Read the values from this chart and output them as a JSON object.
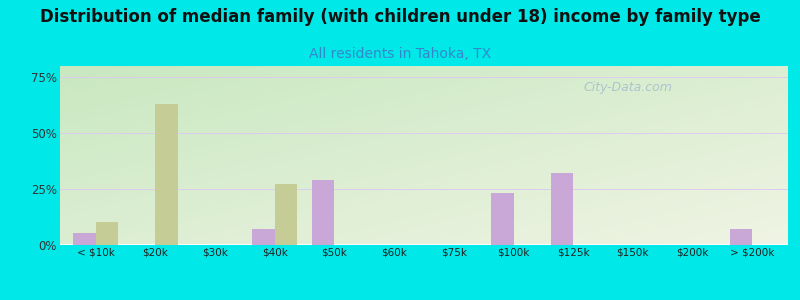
{
  "title": "Distribution of median family (with children under 18) income by family type",
  "subtitle": "All residents in Tahoka, TX",
  "categories": [
    "< $10k",
    "$20k",
    "$30k",
    "$40k",
    "$50k",
    "$60k",
    "$75k",
    "$100k",
    "$125k",
    "$150k",
    "$200k",
    "> $200k"
  ],
  "married_values": [
    5,
    0,
    0,
    7,
    29,
    0,
    0,
    23,
    32,
    0,
    0,
    7
  ],
  "female_values": [
    10,
    63,
    0,
    27,
    0,
    0,
    0,
    0,
    0,
    0,
    0,
    0
  ],
  "married_color": "#c9a8d8",
  "female_color": "#c5cc96",
  "bar_width": 0.38,
  "ylim": [
    0,
    80
  ],
  "yticks": [
    0,
    25,
    50,
    75
  ],
  "ytick_labels": [
    "0%",
    "25%",
    "50%",
    "75%"
  ],
  "outer_bg": "#00e8e8",
  "title_fontsize": 12,
  "subtitle_fontsize": 10,
  "subtitle_color": "#3388cc",
  "grid_color": "#ddccee",
  "watermark": "City-Data.com",
  "bg_left_top": "#c8e8c0",
  "bg_right_bottom": "#f0f4e8"
}
